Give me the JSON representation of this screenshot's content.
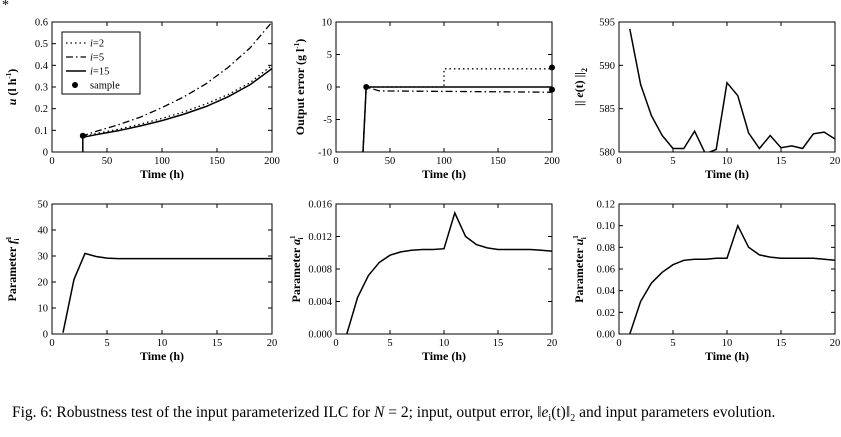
{
  "corner_mark": "*",
  "caption": {
    "label": "Fig. 6:",
    "text": "Robustness test of the input parameterized ILC for N = 2; input, output error, ‖e_i(t)‖_2 and input parameters evolution.",
    "pre": " Robustness test of the input parameterized ILC for ",
    "var_n": "N",
    "mid": " = 2; input, output error, ",
    "norm_var": "e",
    "norm_sub": "i",
    "norm_arg": "(t)",
    "norm_sub2": "2",
    "post": " and input parameters evolution."
  },
  "chart_data": [
    {
      "id": "input",
      "type": "line",
      "xlabel": "Time (h)",
      "ylabel": "u (l h⁻¹)",
      "ylabel_parts": {
        "sym": "u",
        "unit": " (l h",
        "sup": "-1",
        "close": ")"
      },
      "xlim": [
        0,
        200
      ],
      "ylim": [
        0,
        0.6
      ],
      "xticks": [
        "0",
        "50",
        "100",
        "150",
        "200"
      ],
      "yticks": [
        "0",
        "0.1",
        "0.2",
        "0.3",
        "0.4",
        "0.5",
        "0.6"
      ],
      "legend": {
        "position": "top-left",
        "entries": [
          "i=2",
          "i=5",
          "i=15",
          "sample"
        ]
      },
      "series": [
        {
          "name": "i=2",
          "style": "dotted",
          "x": [
            28,
            28,
            40,
            60,
            80,
            100,
            120,
            140,
            160,
            180,
            200
          ],
          "y": [
            0,
            0.07,
            0.085,
            0.105,
            0.128,
            0.155,
            0.185,
            0.222,
            0.265,
            0.32,
            0.4
          ]
        },
        {
          "name": "i=5",
          "style": "dashdot",
          "x": [
            28,
            28,
            40,
            60,
            80,
            100,
            120,
            140,
            160,
            180,
            200
          ],
          "y": [
            0,
            0.075,
            0.095,
            0.125,
            0.16,
            0.205,
            0.255,
            0.315,
            0.39,
            0.48,
            0.6
          ]
        },
        {
          "name": "i=15",
          "style": "solid",
          "x": [
            28,
            28,
            40,
            60,
            80,
            100,
            120,
            140,
            160,
            180,
            200
          ],
          "y": [
            0,
            0.068,
            0.08,
            0.098,
            0.12,
            0.145,
            0.175,
            0.21,
            0.255,
            0.31,
            0.385
          ]
        },
        {
          "name": "sample",
          "style": "marker",
          "x": [
            28
          ],
          "y": [
            0.075
          ]
        }
      ]
    },
    {
      "id": "output-error",
      "type": "line",
      "xlabel": "Time (h)",
      "ylabel": "Output error (g l⁻¹)",
      "ylabel_parts": {
        "unit": "Output error (g l",
        "sup": "-1",
        "close": ")"
      },
      "xlim": [
        0,
        200
      ],
      "ylim": [
        -10,
        10
      ],
      "xticks": [
        "0",
        "50",
        "100",
        "150",
        "200"
      ],
      "yticks": [
        "-10",
        "-5",
        "0",
        "5",
        "10"
      ],
      "series": [
        {
          "name": "i=2",
          "style": "dotted",
          "x": [
            25,
            28,
            100,
            100,
            200,
            200
          ],
          "y": [
            -10,
            0,
            0,
            2.8,
            2.8,
            3.0
          ]
        },
        {
          "name": "i=5",
          "style": "dashdot",
          "x": [
            25,
            28,
            40,
            200
          ],
          "y": [
            -10,
            0,
            -0.6,
            -0.8
          ]
        },
        {
          "name": "i=15",
          "style": "solid",
          "x": [
            25,
            28,
            200
          ],
          "y": [
            -10,
            0,
            0
          ]
        },
        {
          "name": "sample",
          "style": "marker",
          "x": [
            28,
            200,
            200
          ],
          "y": [
            0,
            3.0,
            -0.4
          ]
        }
      ]
    },
    {
      "id": "error-norm",
      "type": "line",
      "xlabel": "Time (h)",
      "ylabel": "|| e(t) ||₂",
      "ylabel_parts": {
        "pre": "|| ",
        "sym": "e",
        "arg": "(t) ||",
        "sub": "2"
      },
      "xlim": [
        0,
        20
      ],
      "ylim": [
        580,
        595
      ],
      "xticks": [
        "0",
        "5",
        "10",
        "15",
        "20"
      ],
      "yticks": [
        "580",
        "585",
        "590",
        "595"
      ],
      "series": [
        {
          "name": "norm",
          "style": "solid",
          "x": [
            1,
            2,
            3,
            4,
            5,
            6,
            7,
            8,
            9,
            10,
            11,
            12,
            13,
            14,
            15,
            16,
            17,
            18,
            19,
            20
          ],
          "y": [
            594.2,
            587.8,
            584.2,
            581.9,
            580.4,
            580.4,
            582.4,
            579.8,
            580.3,
            588.0,
            586.5,
            582.2,
            580.4,
            581.9,
            580.5,
            580.7,
            580.4,
            582.1,
            582.3,
            581.5
          ]
        }
      ]
    },
    {
      "id": "param-f",
      "type": "line",
      "xlabel": "Time (h)",
      "ylabel": "Parameter f_i^1",
      "ylabel_parts": {
        "pre": "Parameter ",
        "sym": "f",
        "sub": "i",
        "sup": "1"
      },
      "xlim": [
        0,
        20
      ],
      "ylim": [
        0,
        50
      ],
      "xticks": [
        "0",
        "5",
        "10",
        "15",
        "20"
      ],
      "yticks": [
        "0",
        "10",
        "20",
        "30",
        "40",
        "50"
      ],
      "series": [
        {
          "name": "f",
          "style": "solid",
          "x": [
            1,
            2,
            3,
            4,
            5,
            6,
            7,
            8,
            9,
            10,
            11,
            12,
            13,
            14,
            15,
            16,
            17,
            18,
            19,
            20
          ],
          "y": [
            0.5,
            21,
            31,
            29.8,
            29.2,
            29.0,
            29.0,
            29.0,
            29.0,
            29.0,
            29.0,
            29.0,
            29.0,
            29.0,
            29.0,
            29.0,
            29.0,
            29.0,
            29.0,
            29.0
          ]
        }
      ]
    },
    {
      "id": "param-a",
      "type": "line",
      "xlabel": "Time (h)",
      "ylabel": "Parameter a_i^1",
      "ylabel_parts": {
        "pre": "Parameter ",
        "sym": "a",
        "sub": "i",
        "sup": "1"
      },
      "xlim": [
        0,
        20
      ],
      "ylim": [
        0,
        0.016
      ],
      "xticks": [
        "0",
        "5",
        "10",
        "15",
        "20"
      ],
      "yticks": [
        "0.000",
        "0.004",
        "0.008",
        "0.012",
        "0.016"
      ],
      "series": [
        {
          "name": "a",
          "style": "solid",
          "x": [
            1,
            2,
            3,
            4,
            5,
            6,
            7,
            8,
            9,
            10,
            11,
            12,
            13,
            14,
            15,
            16,
            17,
            18,
            19,
            20
          ],
          "y": [
            0.0,
            0.0045,
            0.0072,
            0.0088,
            0.0097,
            0.0101,
            0.0103,
            0.0104,
            0.0104,
            0.0105,
            0.0149,
            0.012,
            0.011,
            0.0106,
            0.0104,
            0.0104,
            0.0104,
            0.0104,
            0.0103,
            0.0102
          ]
        }
      ]
    },
    {
      "id": "param-u",
      "type": "line",
      "xlabel": "Time (h)",
      "ylabel": "Parameter u_i^1",
      "ylabel_parts": {
        "pre": "Parameter ",
        "sym": "u",
        "sub": "i",
        "sup": "1"
      },
      "xlim": [
        0,
        20
      ],
      "ylim": [
        0,
        0.12
      ],
      "xticks": [
        "0",
        "5",
        "10",
        "15",
        "20"
      ],
      "yticks": [
        "0.00",
        "0.02",
        "0.04",
        "0.06",
        "0.08",
        "0.10",
        "0.12"
      ],
      "series": [
        {
          "name": "u",
          "style": "solid",
          "x": [
            1,
            2,
            3,
            4,
            5,
            6,
            7,
            8,
            9,
            10,
            11,
            12,
            13,
            14,
            15,
            16,
            17,
            18,
            19,
            20
          ],
          "y": [
            0.0,
            0.03,
            0.047,
            0.057,
            0.064,
            0.068,
            0.069,
            0.069,
            0.07,
            0.07,
            0.1,
            0.08,
            0.073,
            0.071,
            0.07,
            0.07,
            0.07,
            0.07,
            0.069,
            0.068
          ]
        }
      ]
    }
  ]
}
